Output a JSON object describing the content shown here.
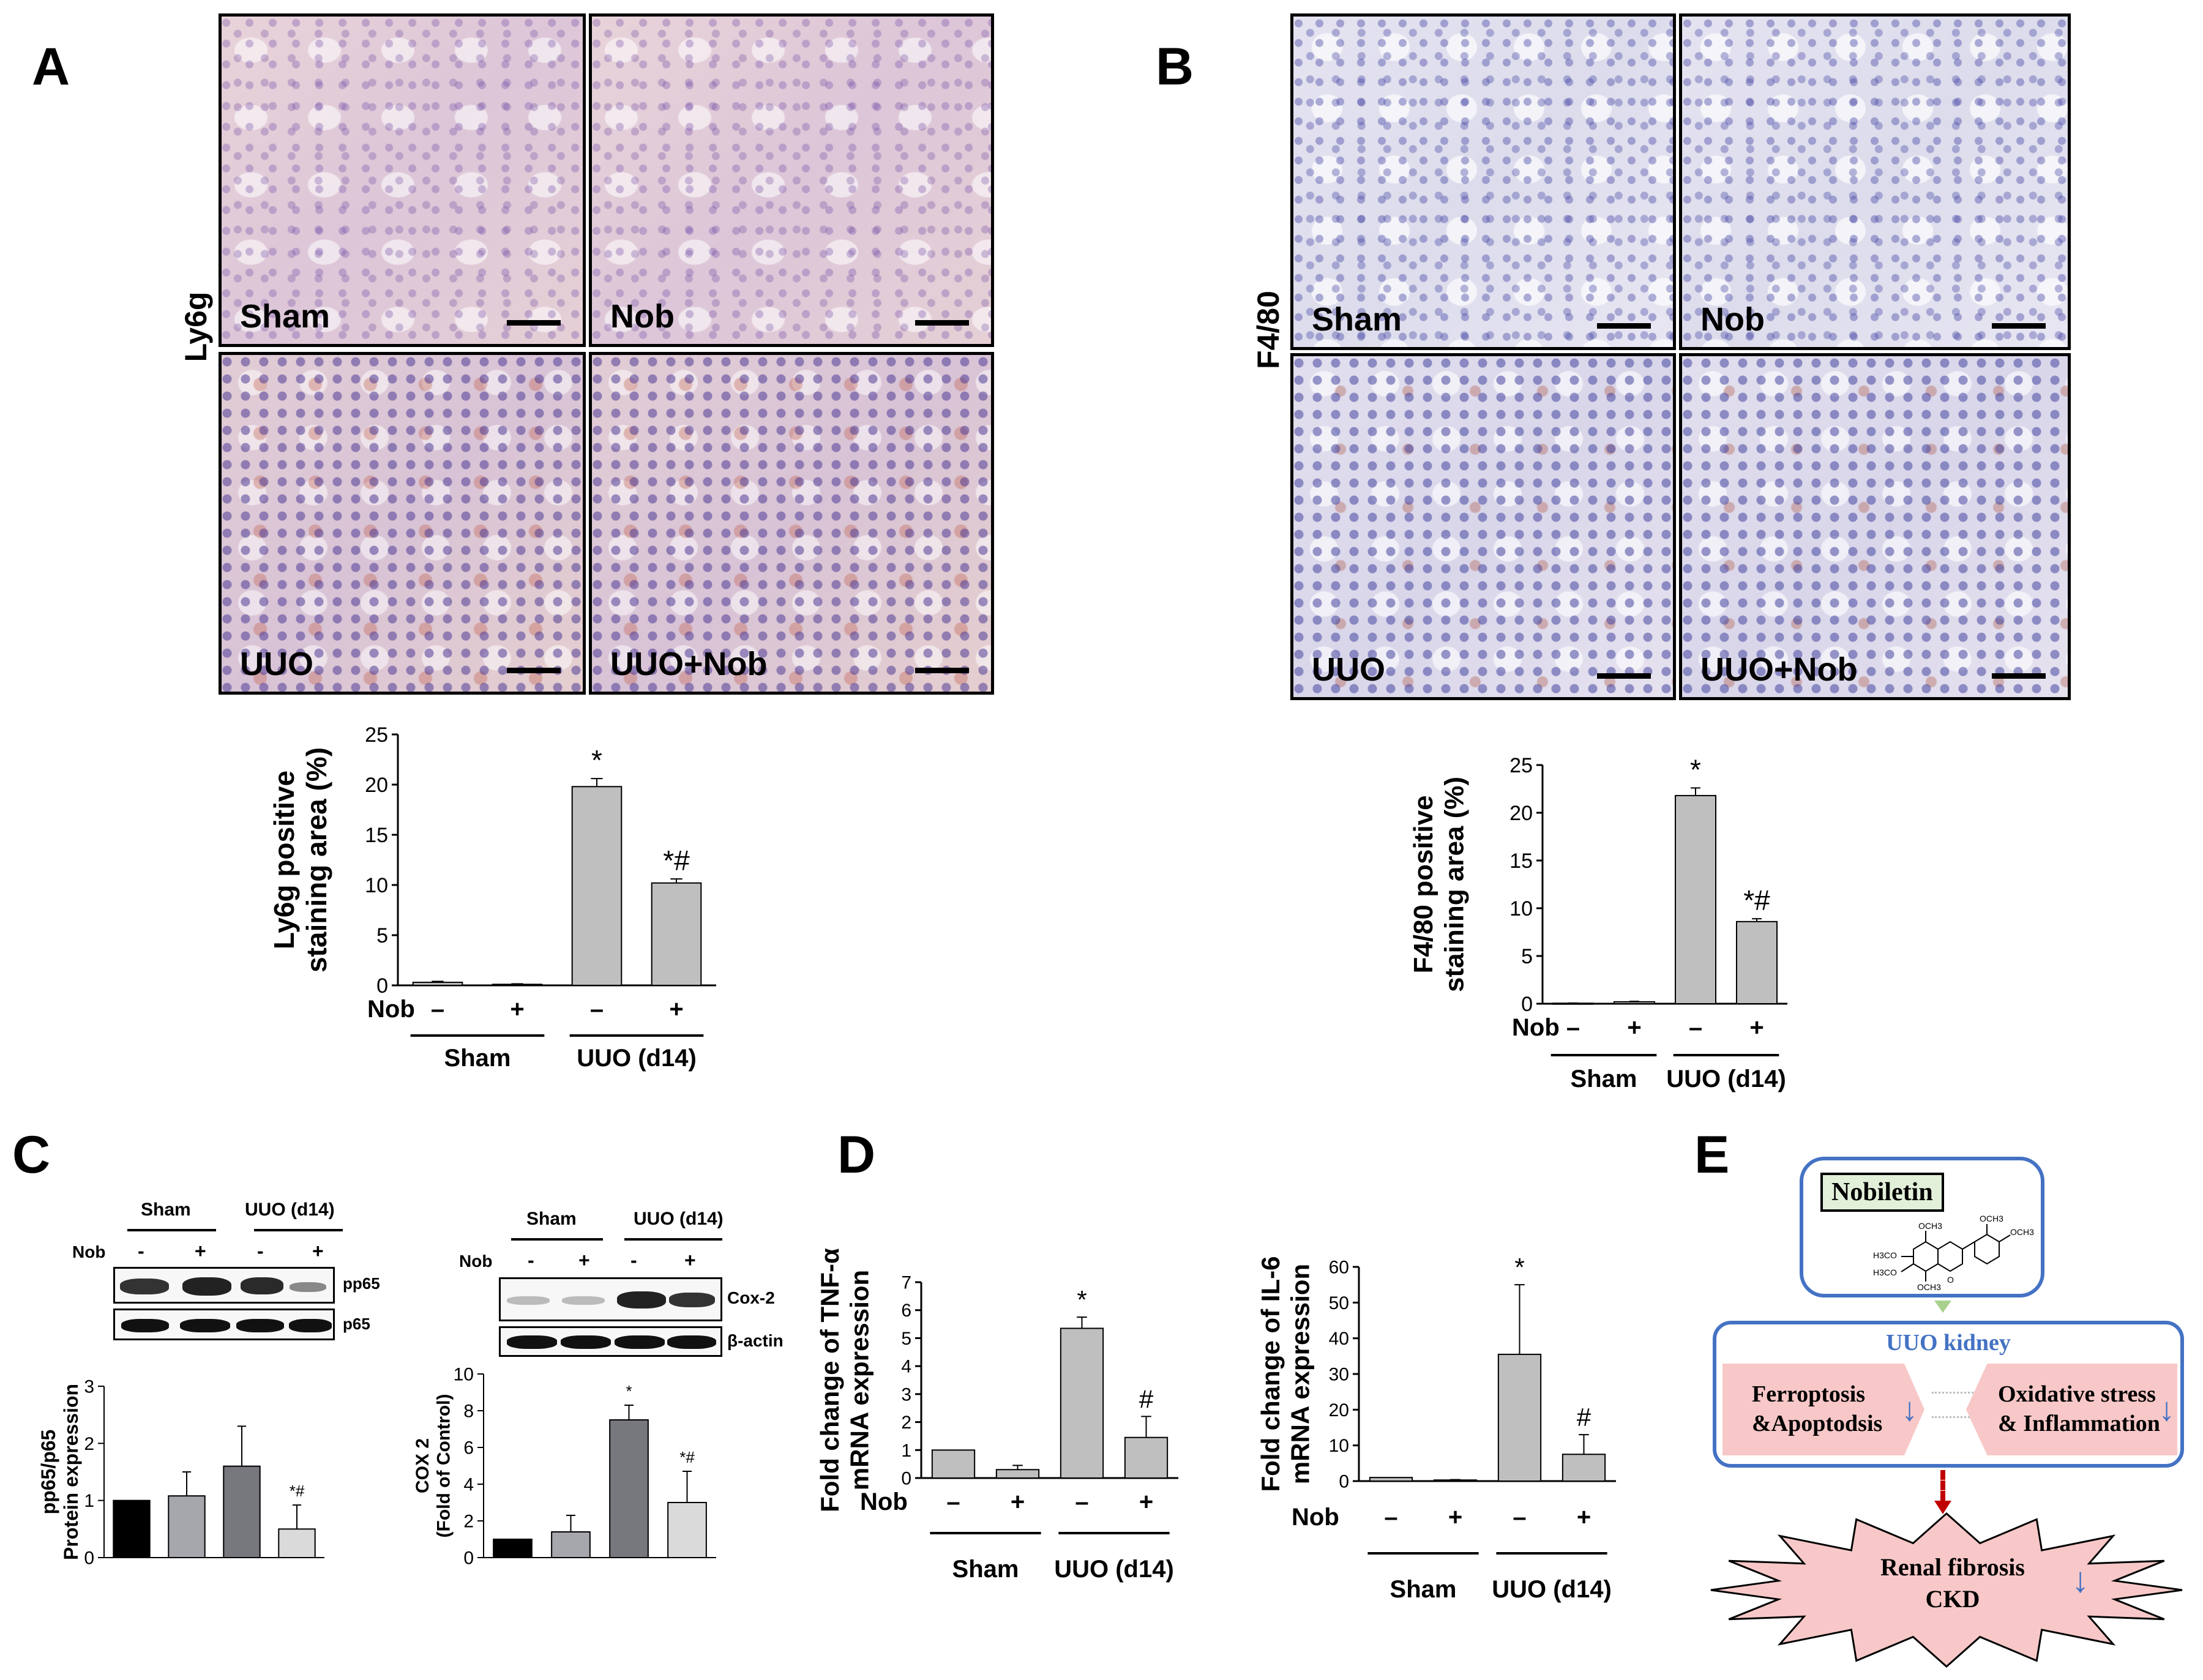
{
  "panels": {
    "A": "A",
    "B": "B",
    "C": "C",
    "D": "D",
    "E": "E"
  },
  "panelA": {
    "stain": "Ly6g",
    "images": [
      "Sham",
      "Nob",
      "UUO",
      "UUO+Nob"
    ],
    "chart_data": {
      "type": "bar",
      "ylabel": "Ly6g positive staining area (%)",
      "ylabel_lines": [
        "Ly6g positive",
        "staining area (%)"
      ],
      "ylim": [
        0,
        25
      ],
      "yticks": [
        "0",
        "5",
        "10",
        "15",
        "20",
        "25"
      ],
      "values": [
        0.3,
        0.1,
        19.8,
        10.2
      ],
      "errors": [
        0.1,
        0.05,
        0.8,
        0.4
      ],
      "annotations": [
        "",
        "",
        "*",
        "*#"
      ],
      "nob_label": "Nob",
      "nob": [
        "–",
        "+",
        "–",
        "+"
      ],
      "groups": [
        "Sham",
        "UUO (d14)"
      ]
    }
  },
  "panelB": {
    "stain": "F4/80",
    "images": [
      "Sham",
      "Nob",
      "UUO",
      "UUO+Nob"
    ],
    "chart_data": {
      "type": "bar",
      "ylabel": "F4/80 positive staining area (%)",
      "ylabel_lines": [
        "F4/80 positive",
        "staining area (%)"
      ],
      "ylim": [
        0,
        25
      ],
      "yticks": [
        "0",
        "5",
        "10",
        "15",
        "20",
        "25"
      ],
      "values": [
        0.05,
        0.2,
        21.8,
        8.6
      ],
      "errors": [
        0.02,
        0.05,
        0.8,
        0.3
      ],
      "annotations": [
        "",
        "",
        "*",
        "*#"
      ],
      "nob_label": "Nob",
      "nob": [
        "–",
        "+",
        "–",
        "+"
      ],
      "groups": [
        "Sham",
        "UUO (d14)"
      ]
    }
  },
  "panelC": {
    "blot1": {
      "groups": [
        "Sham",
        "UUO (d14)"
      ],
      "nob_label": "Nob",
      "nob": [
        "-",
        "+",
        "-",
        "+"
      ],
      "bands": [
        "pp65",
        "p65"
      ]
    },
    "chart1": {
      "type": "bar",
      "ylabel_lines": [
        "pp65/p65",
        "Protein expression"
      ],
      "ylim": [
        0,
        3
      ],
      "yticks": [
        "0",
        "1",
        "2",
        "3"
      ],
      "values": [
        1.0,
        1.08,
        1.6,
        0.5
      ],
      "errors": [
        0,
        0.42,
        0.7,
        0.42
      ],
      "colors": [
        "#000000",
        "#a6a6ad",
        "#77777e",
        "#dadada"
      ],
      "annotations": [
        "",
        "",
        "",
        "*#"
      ]
    },
    "blot2": {
      "groups": [
        "Sham",
        "UUO (d14)"
      ],
      "nob_label": "Nob",
      "nob": [
        "-",
        "+",
        "-",
        "+"
      ],
      "bands": [
        "Cox-2",
        "β-actin"
      ]
    },
    "chart2": {
      "type": "bar",
      "ylabel_lines": [
        "COX 2",
        "(Fold of Control)"
      ],
      "ylim": [
        0,
        10
      ],
      "yticks": [
        "0",
        "2",
        "4",
        "6",
        "8",
        "10"
      ],
      "values": [
        1.0,
        1.4,
        7.5,
        3.0
      ],
      "errors": [
        0,
        0.9,
        0.8,
        1.7
      ],
      "colors": [
        "#000000",
        "#a6a6ad",
        "#77777e",
        "#dadada"
      ],
      "annotations": [
        "",
        "",
        "*",
        "*#"
      ]
    }
  },
  "panelD": {
    "chart1": {
      "type": "bar",
      "ylabel_lines": [
        "Fold change of TNF-α",
        "mRNA expression"
      ],
      "ylim": [
        0,
        7
      ],
      "yticks": [
        "0",
        "1",
        "2",
        "3",
        "4",
        "5",
        "6",
        "7"
      ],
      "values": [
        1.0,
        0.3,
        5.35,
        1.45
      ],
      "errors": [
        0,
        0.15,
        0.4,
        0.75
      ],
      "annotations": [
        "",
        "",
        "*",
        "#"
      ],
      "nob_label": "Nob",
      "nob": [
        "–",
        "+",
        "–",
        "+"
      ],
      "groups": [
        "Sham",
        "UUO (d14)"
      ]
    },
    "chart2": {
      "type": "bar",
      "ylabel_lines": [
        "Fold change of IL-6",
        "mRNA expression"
      ],
      "ylim": [
        0,
        60
      ],
      "yticks": [
        "0",
        "10",
        "20",
        "30",
        "40",
        "50",
        "60"
      ],
      "values": [
        1.0,
        0.3,
        35.5,
        7.5
      ],
      "errors": [
        0,
        0.1,
        19.5,
        5.5
      ],
      "annotations": [
        "",
        "",
        "*",
        "#"
      ],
      "nob_label": "Nob",
      "nob": [
        "–",
        "+",
        "–",
        "+"
      ],
      "groups": [
        "Sham",
        "UUO (d14)"
      ]
    }
  },
  "panelE": {
    "compound": "Nobiletin",
    "kidney": "UUO kidney",
    "left_box": [
      "Ferroptosis",
      "&Apoptodsis"
    ],
    "right_box": [
      "Oxidative stress",
      "& Inflammation"
    ],
    "outcome": [
      "Renal fibrosis",
      "CKD"
    ],
    "chem_labels": [
      "OCH3",
      "OCH3",
      "OCH3",
      "H3CO",
      "H3CO",
      "OCH3",
      "O"
    ]
  }
}
